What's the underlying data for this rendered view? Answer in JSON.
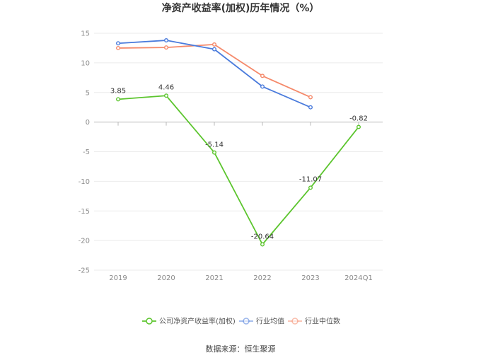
{
  "chart_data": {
    "type": "line",
    "title": "净资产收益率(加权)历年情况（%）",
    "categories": [
      "2019",
      "2020",
      "2021",
      "2022",
      "2023",
      "2024Q1"
    ],
    "ylim": [
      -25,
      15
    ],
    "yticks": [
      15,
      10,
      5,
      0,
      -5,
      -10,
      -15,
      -20,
      -25
    ],
    "grid": true,
    "legend_position": "bottom",
    "series": [
      {
        "name": "公司净资产收益率(加权)",
        "color": "#5cc52e",
        "values": [
          3.85,
          4.46,
          -5.14,
          -20.64,
          -11.07,
          -0.82
        ],
        "labels": [
          "3.85",
          "4.46",
          "-5.14",
          "-20.64",
          "-11.07",
          "-0.82"
        ]
      },
      {
        "name": "行业均值",
        "color": "#4a7bdc",
        "values": [
          13.3,
          13.8,
          12.3,
          6.0,
          2.5,
          null
        ]
      },
      {
        "name": "行业中位数",
        "color": "#f5896a",
        "values": [
          12.5,
          12.6,
          13.1,
          7.8,
          4.2,
          null
        ]
      }
    ]
  },
  "source_text": "数据来源：恒生聚源"
}
